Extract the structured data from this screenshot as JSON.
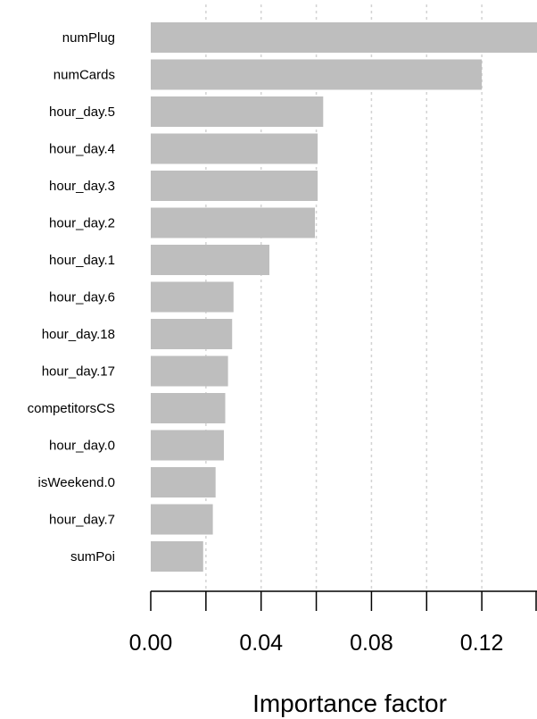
{
  "chart_data": {
    "type": "bar",
    "orientation": "horizontal",
    "categories": [
      "numPlug",
      "numCards",
      "hour_day.5",
      "hour_day.4",
      "hour_day.3",
      "hour_day.2",
      "hour_day.1",
      "hour_day.6",
      "hour_day.18",
      "hour_day.17",
      "competitorsCS",
      "hour_day.0",
      "isWeekend.0",
      "hour_day.7",
      "sumPoi"
    ],
    "values": [
      0.14,
      0.12,
      0.0625,
      0.0605,
      0.0605,
      0.0595,
      0.043,
      0.03,
      0.0295,
      0.028,
      0.027,
      0.0265,
      0.0235,
      0.0225,
      0.019
    ],
    "title": "",
    "xlabel": "Importance factor",
    "ylabel": "",
    "xlim": [
      0,
      0.14
    ],
    "x_ticks": [
      0,
      0.04,
      0.08,
      0.12
    ],
    "x_tick_labels": [
      "0.00",
      "0.04",
      "0.08",
      "0.12"
    ],
    "grid": "vertical dotted",
    "bar_color": "#bebebe",
    "grid_color": "#d3d3d3"
  }
}
